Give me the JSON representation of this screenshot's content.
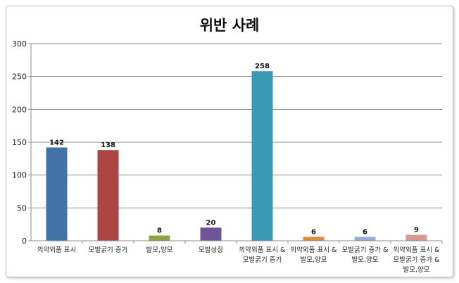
{
  "chart_data": {
    "type": "bar",
    "title": "위반 사례",
    "categories": [
      [
        "의약외품 표시"
      ],
      [
        "모발굵기 증가"
      ],
      [
        "발모,양모"
      ],
      [
        "모발성장"
      ],
      [
        "의약외품 표시 &",
        "모발굵기 증가"
      ],
      [
        "의약외품 표시 &",
        "발모,양모"
      ],
      [
        "모발굵기 증가 &",
        "발모,양모"
      ],
      [
        "의약외품 표시 &",
        "모발굵기 증가 &",
        "발모,양모"
      ]
    ],
    "values": [
      142,
      138,
      8,
      20,
      258,
      6,
      6,
      9
    ],
    "data_labels": [
      "142",
      "138",
      "8",
      "20",
      "258",
      "6",
      "6",
      "9"
    ],
    "colors": [
      "#4472a6",
      "#ab4544",
      "#8aa448",
      "#6f5497",
      "#3a9ab3",
      "#e08a3c",
      "#94b1d6",
      "#d99896"
    ],
    "ylim": [
      0,
      300
    ],
    "yticks": [
      "0",
      "50",
      "100",
      "150",
      "200",
      "250",
      "300"
    ],
    "grid": true,
    "legend": "none",
    "xlabel": "",
    "ylabel": ""
  }
}
